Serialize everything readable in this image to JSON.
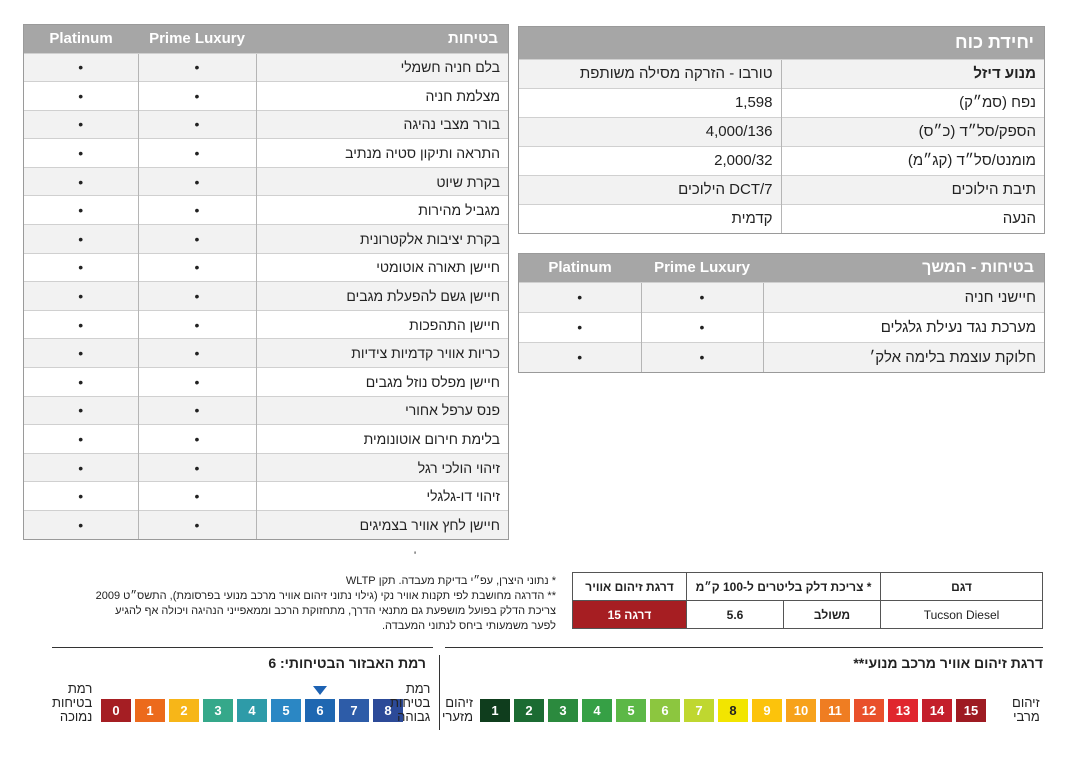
{
  "safety": {
    "title": "בטיחות",
    "col1": "Prime Luxury",
    "col2": "Platinum",
    "items": [
      "בלם חניה חשמלי",
      "מצלמת חניה",
      "בורר מצבי נהיגה",
      "התראה ותיקון סטיה מנתיב",
      "בקרת שיוט",
      "מגביל מהירות",
      "בקרת יציבות אלקטרונית",
      "חיישן תאורה אוטומטי",
      "חיישן גשם להפעלת מגבים",
      "חיישן התהפכות",
      "כריות אוויר קדמיות צידיות",
      "חיישן מפלס נוזל מגבים",
      "פנס ערפל אחורי",
      "בלימת חירום אוטונומית",
      "זיהוי הולכי רגל",
      "זיהוי דו-גלגלי",
      "חיישן לחץ אוויר בצמיגים"
    ],
    "dot": "•"
  },
  "power": {
    "title": "יחידת כוח",
    "rows": [
      {
        "label": "מנוע דיזל",
        "value": "טורבו - הזרקה מסילה משותפת"
      },
      {
        "label": "נפח (סמ״ק)",
        "value": "1,598"
      },
      {
        "label": "הספק/סל״ד (כ״ס)",
        "value": "4,000/136"
      },
      {
        "label": "מומנט/סל״ד (קג״מ)",
        "value": "2,000/32"
      },
      {
        "label": "תיבת הילוכים",
        "value": "DCT/7 הילוכים"
      },
      {
        "label": "הנעה",
        "value": "קדמית"
      }
    ]
  },
  "safety2": {
    "title": "בטיחות - המשך",
    "col1": "Prime Luxury",
    "col2": "Platinum",
    "items": [
      "חיישני חניה",
      "מערכת נגד נעילת גלגלים",
      "חלוקת עוצמת בלימה אלק׳"
    ]
  },
  "fuel": {
    "h_model": "דגם",
    "h_consumption": "צריכת דלק בליטרים ל-100 ק״מ *",
    "h_pollution": "דרגת זיהום אוויר",
    "model": "Tucson Diesel",
    "mode": "משולב",
    "value": "5.6",
    "grade": "דרגה 15"
  },
  "notes": {
    "line1": "*  נתוני היצרן, עפ״י בדיקת מעבדה. תקן WLTP",
    "line2": "** הדרגה מחושבת לפי תקנות אוויר נקי (גילוי נתוני זיהום אוויר מרכב מנועי בפרסומת), התשס״ט 2009",
    "line3": "צריכת הדלק בפועל מושפעת גם מתנאי הדרך, מתחזוקת הרכב וממאפייני הנהיגה ויכולה אף להגיע",
    "line4": "לפער משמעותי ביחס לנתוני המעבדה.",
    "mark": "'"
  },
  "pollution_scale": {
    "title": "דרגת זיהום אוויר מרכב מנועי**",
    "min_label_1": "זיהום",
    "min_label_2": "מזערי",
    "max_label_1": "זיהום",
    "max_label_2": "מרבי",
    "cells": [
      {
        "n": "1",
        "c": "#0f3d1d"
      },
      {
        "n": "2",
        "c": "#1b6b32"
      },
      {
        "n": "3",
        "c": "#2b8a3e"
      },
      {
        "n": "4",
        "c": "#36a045"
      },
      {
        "n": "5",
        "c": "#5cb847"
      },
      {
        "n": "6",
        "c": "#8cc63f"
      },
      {
        "n": "7",
        "c": "#bfd730"
      },
      {
        "n": "8",
        "c": "#f2e500"
      },
      {
        "n": "9",
        "c": "#fcc30b"
      },
      {
        "n": "10",
        "c": "#f7a21b"
      },
      {
        "n": "11",
        "c": "#ef7d22"
      },
      {
        "n": "12",
        "c": "#e9502b"
      },
      {
        "n": "13",
        "c": "#e0262e"
      },
      {
        "n": "14",
        "c": "#c41f2b"
      },
      {
        "n": "15",
        "c": "#9e1b22"
      }
    ]
  },
  "safety_scale": {
    "title": "רמת האבזור הבטיחותי: 6",
    "level": 6,
    "low_label_1": "רמת",
    "low_label_2": "בטיחות",
    "low_label_3": "נמוכה",
    "high_label_1": "רמת",
    "high_label_2": "בטיחות",
    "high_label_3": "גבוהה",
    "cells": [
      {
        "n": "0",
        "c": "#a51e23"
      },
      {
        "n": "1",
        "c": "#ec6a1c"
      },
      {
        "n": "2",
        "c": "#f7b618"
      },
      {
        "n": "3",
        "c": "#35a88a"
      },
      {
        "n": "4",
        "c": "#2e9ba8"
      },
      {
        "n": "5",
        "c": "#2b87c4"
      },
      {
        "n": "6",
        "c": "#1f67b1"
      },
      {
        "n": "7",
        "c": "#2d5ca8"
      },
      {
        "n": "8",
        "c": "#2c4a98"
      }
    ]
  }
}
